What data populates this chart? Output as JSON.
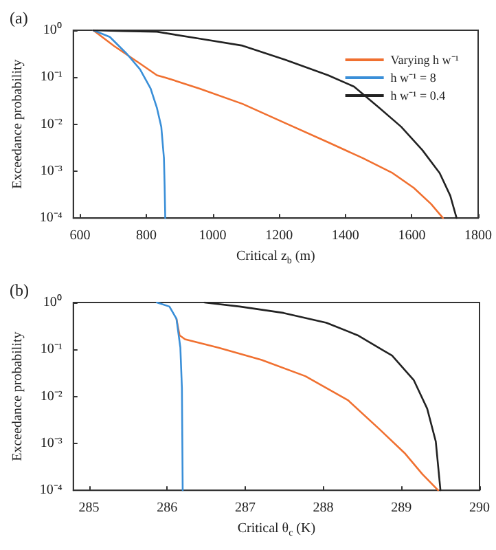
{
  "chart_data": [
    {
      "type": "line",
      "title": "(a)",
      "xlabel": "Critical z$_{b}$ (m)",
      "ylabel": "Exceedance probability",
      "log": "y",
      "grid": false,
      "legend": "top right",
      "xlim": [
        580,
        1800
      ],
      "xticks": [
        600,
        800,
        1000,
        1200,
        1400,
        1600,
        1800
      ],
      "ylim": [
        0.0001,
        1
      ],
      "yticks": [
        {
          "value": 0.0001,
          "label": "10⁻⁴"
        },
        {
          "value": 0.001,
          "label": "10⁻³"
        },
        {
          "value": 0.01,
          "label": "10⁻²"
        },
        {
          "value": 0.1,
          "label": "10⁻¹"
        },
        {
          "value": 1,
          "label": "10⁰"
        }
      ],
      "series": [
        {
          "name": "Varying h w⁻¹",
          "color": "#f07030",
          "x": [
            640,
            703,
            781,
            832,
            858,
            961,
            1090,
            1219,
            1348,
            1452,
            1542,
            1606,
            1658,
            1694
          ],
          "values": [
            1,
            0.46,
            0.195,
            0.11,
            0.098,
            0.057,
            0.027,
            0.0105,
            0.0041,
            0.0019,
            0.00091,
            0.00044,
            0.0002,
            0.0001
          ]
        },
        {
          "name": "h w⁻¹ = 8",
          "color": "#3a8fd8",
          "x": [
            640,
            690,
            742,
            781,
            813,
            832,
            845,
            853,
            855,
            857
          ],
          "values": [
            1,
            0.72,
            0.31,
            0.147,
            0.057,
            0.022,
            0.0088,
            0.0019,
            0.00052,
            0.0001
          ]
        },
        {
          "name": "h w⁻¹ = 0.4",
          "color": "#222222",
          "x": [
            640,
            729,
            832,
            961,
            1090,
            1219,
            1348,
            1426,
            1503,
            1568,
            1632,
            1684,
            1716,
            1735
          ],
          "values": [
            1,
            0.96,
            0.93,
            0.66,
            0.47,
            0.235,
            0.11,
            0.063,
            0.022,
            0.0088,
            0.0028,
            0.00091,
            0.0003,
            0.0001
          ]
        }
      ]
    },
    {
      "type": "line",
      "title": "(b)",
      "xlabel": "Critical θ$_{c}$ (K)",
      "ylabel": "Exceedance probability",
      "log": "y",
      "grid": false,
      "xlim": [
        284.8,
        290
      ],
      "xticks": [
        285,
        286,
        287,
        288,
        289,
        290
      ],
      "ylim": [
        0.0001,
        1
      ],
      "yticks": [
        {
          "value": 0.0001,
          "label": "10⁻⁴"
        },
        {
          "value": 0.001,
          "label": "10⁻³"
        },
        {
          "value": 0.01,
          "label": "10⁻²"
        },
        {
          "value": 0.1,
          "label": "10⁻¹"
        },
        {
          "value": 1,
          "label": "10⁰"
        }
      ],
      "series": [
        {
          "color": "#f07030",
          "x": [
            286.12,
            286.16,
            286.23,
            286.65,
            287.21,
            287.77,
            288.32,
            288.72,
            289.05,
            289.27,
            289.47
          ],
          "values": [
            0.45,
            0.2,
            0.165,
            0.11,
            0.06,
            0.027,
            0.0082,
            0.002,
            0.0006,
            0.00022,
            0.0001
          ]
        },
        {
          "color": "#3a8fd8",
          "x": [
            285.87,
            286.03,
            286.12,
            286.17,
            286.19,
            286.2
          ],
          "values": [
            1,
            0.82,
            0.45,
            0.11,
            0.015,
            0.0001
          ]
        },
        {
          "color": "#222222",
          "x": [
            286.48,
            286.93,
            287.49,
            288.04,
            288.44,
            288.88,
            289.16,
            289.33,
            289.44,
            289.5
          ],
          "values": [
            1,
            0.82,
            0.6,
            0.37,
            0.2,
            0.074,
            0.022,
            0.0055,
            0.0011,
            0.0001
          ]
        }
      ]
    }
  ]
}
